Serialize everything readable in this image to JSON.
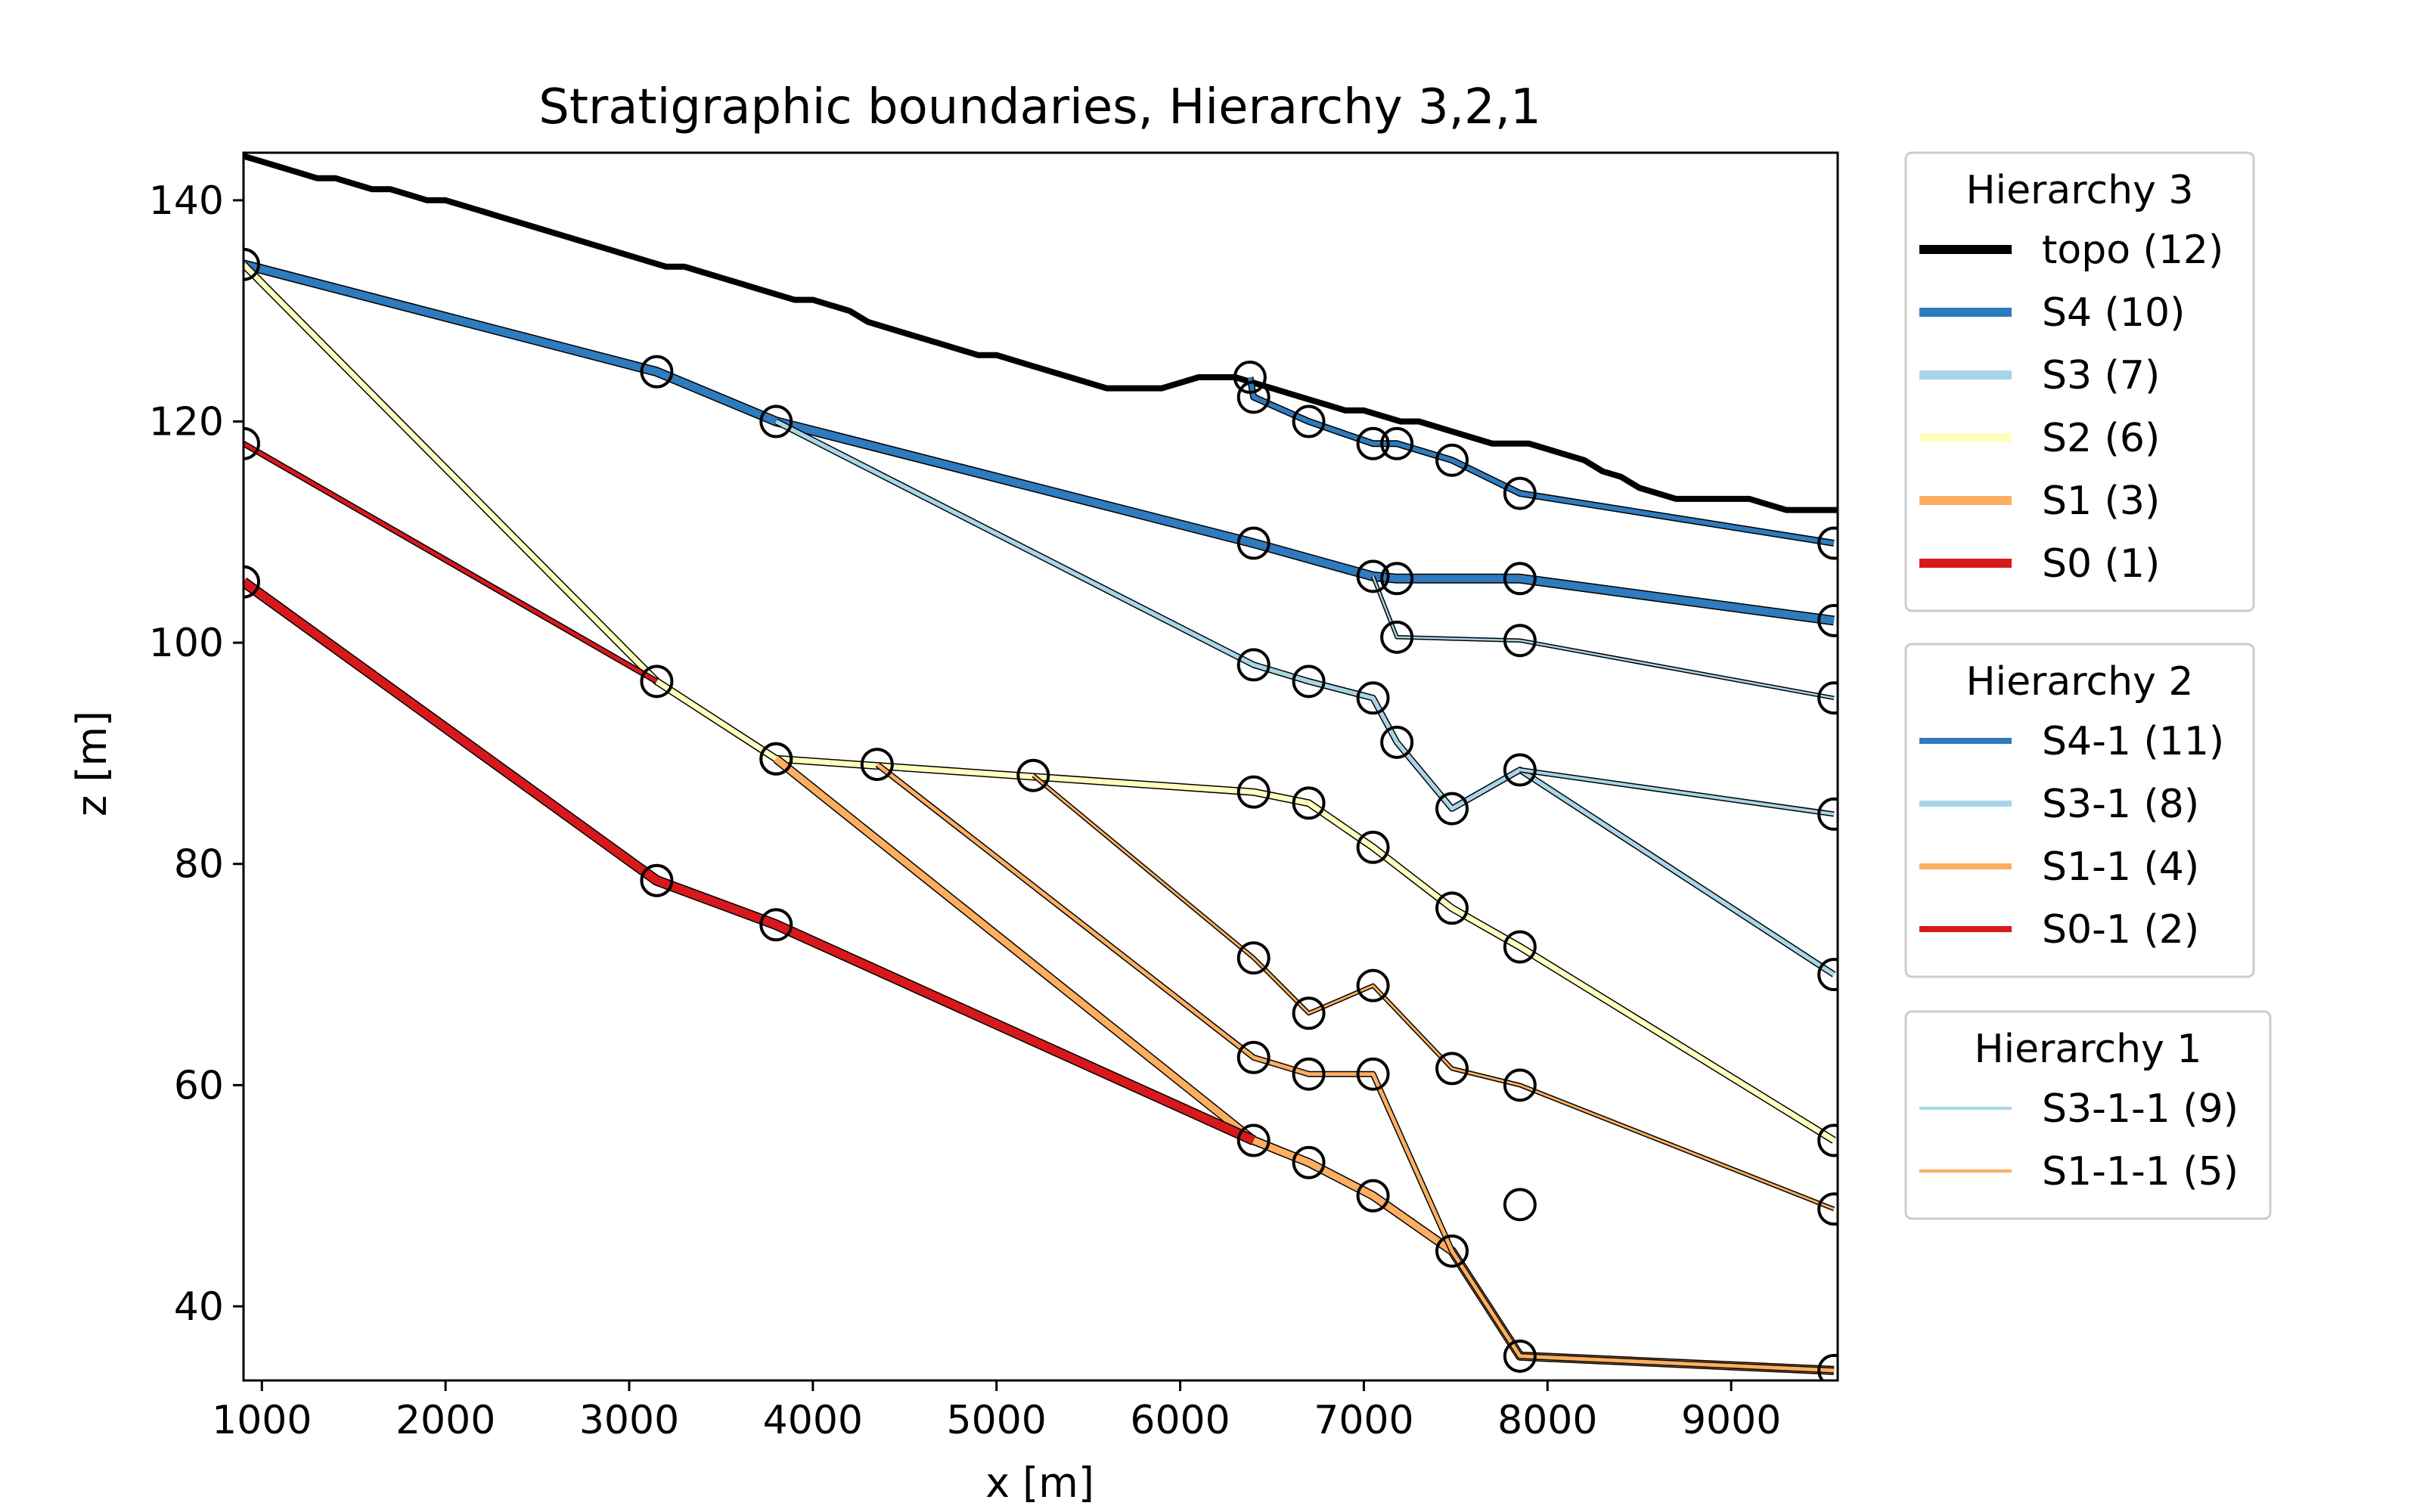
{
  "chart_data": {
    "type": "line",
    "title": "Stratigraphic boundaries, Hierarchy 3,2,1",
    "xlabel": "x [m]",
    "ylabel": "z [m]",
    "xlim": [
      900,
      9580
    ],
    "ylim": [
      33.3,
      144.3
    ],
    "xticks": [
      1000,
      2000,
      3000,
      4000,
      5000,
      6000,
      7000,
      8000,
      9000
    ],
    "yticks": [
      40,
      60,
      80,
      100,
      120,
      140
    ],
    "grid": false,
    "legends": [
      {
        "title": "Hierarchy 3",
        "entries": [
          {
            "label": "topo (12)",
            "color": "#000000",
            "style": "thick"
          },
          {
            "label": "S4 (10)",
            "color": "#2e7bbd",
            "style": "thick"
          },
          {
            "label": "S3 (7)",
            "color": "#a8d5e8",
            "style": "thick"
          },
          {
            "label": "S2 (6)",
            "color": "#ffffbf",
            "style": "thick"
          },
          {
            "label": "S1 (3)",
            "color": "#fdae61",
            "style": "thick"
          },
          {
            "label": "S0 (1)",
            "color": "#d7191c",
            "style": "thick"
          }
        ]
      },
      {
        "title": "Hierarchy 2",
        "entries": [
          {
            "label": "S4-1 (11)",
            "color": "#2e7bbd",
            "style": "medium"
          },
          {
            "label": "S3-1 (8)",
            "color": "#a8d5e8",
            "style": "medium"
          },
          {
            "label": "S1-1 (4)",
            "color": "#fdae61",
            "style": "medium"
          },
          {
            "label": "S0-1 (2)",
            "color": "#d7191c",
            "style": "medium"
          }
        ]
      },
      {
        "title": "Hierarchy 1",
        "entries": [
          {
            "label": "S3-1-1 (9)",
            "color": "#a8d5e8",
            "style": "thin"
          },
          {
            "label": "S1-1-1 (5)",
            "color": "#fdae61",
            "style": "thin"
          }
        ]
      }
    ],
    "series": [
      {
        "name": "topo (12)",
        "color": "#000000",
        "x": [
          900,
          1000,
          1100,
          1200,
          1300,
          1400,
          1500,
          1600,
          1700,
          1800,
          1900,
          2000,
          2100,
          2200,
          2300,
          2400,
          2500,
          2600,
          2700,
          2800,
          2900,
          3000,
          3100,
          3200,
          3300,
          3400,
          3500,
          3600,
          3700,
          3800,
          3900,
          4000,
          4100,
          4200,
          4300,
          4400,
          4500,
          4600,
          4700,
          4800,
          4900,
          5000,
          5100,
          5200,
          5300,
          5400,
          5500,
          5600,
          5700,
          5800,
          5900,
          6000,
          6100,
          6200,
          6300,
          6400,
          6500,
          6600,
          6700,
          6800,
          6900,
          7000,
          7100,
          7200,
          7300,
          7400,
          7500,
          7600,
          7700,
          7800,
          7900,
          8000,
          8100,
          8200,
          8300,
          8400,
          8500,
          8600,
          8700,
          8800,
          8900,
          9000,
          9100,
          9200,
          9300,
          9400,
          9500,
          9580
        ],
        "y": [
          144,
          143.5,
          143,
          142.5,
          142,
          142,
          141.5,
          141,
          141,
          140.5,
          140,
          140,
          139.5,
          139,
          138.5,
          138,
          137.5,
          137,
          136.5,
          136,
          135.5,
          135,
          134.5,
          134,
          134,
          133.5,
          133,
          132.5,
          132,
          131.5,
          131,
          131,
          130.5,
          130,
          129,
          128.5,
          128,
          127.5,
          127,
          126.5,
          126,
          126,
          125.5,
          125,
          124.5,
          124,
          123.5,
          123,
          123,
          123,
          123,
          123.5,
          124,
          124,
          124,
          123.5,
          123,
          122.5,
          122,
          121.5,
          121,
          121,
          120.5,
          120,
          120,
          119.5,
          119,
          118.5,
          118,
          118,
          118,
          117.5,
          117,
          116.5,
          115.5,
          115,
          114,
          113.5,
          113,
          113,
          113,
          113,
          113,
          112.5,
          112,
          112,
          112,
          112
        ],
        "lw": 8,
        "edge": false,
        "markers": []
      },
      {
        "name": "S4 (10)",
        "color": "#2e7bbd",
        "x": [
          900,
          3150,
          3800,
          6400,
          7050,
          7180,
          7850,
          9560
        ],
        "y": [
          134.2,
          124.5,
          120,
          109,
          106,
          105.8,
          105.8,
          102
        ],
        "lw": 10,
        "edge": true,
        "markers": [
          [
            900,
            134.2
          ],
          [
            3150,
            124.5
          ],
          [
            3800,
            120
          ],
          [
            6400,
            109
          ],
          [
            7050,
            106
          ],
          [
            7180,
            105.8
          ],
          [
            7850,
            105.8
          ],
          [
            9560,
            102
          ]
        ]
      },
      {
        "name": "S4-1 (11)",
        "color": "#2e7bbd",
        "x": [
          6380,
          6400,
          6700,
          7050,
          7180,
          7480,
          7850,
          9560
        ],
        "y": [
          124,
          122.2,
          120,
          118,
          118,
          116.5,
          113.5,
          109
        ],
        "lw": 6,
        "edge": true,
        "markers": [
          [
            6380,
            124
          ],
          [
            6400,
            122.2
          ],
          [
            6700,
            120
          ],
          [
            7050,
            118
          ],
          [
            7180,
            118
          ],
          [
            7480,
            116.5
          ],
          [
            7850,
            113.5
          ],
          [
            9560,
            109
          ]
        ]
      },
      {
        "name": "S3 (7)",
        "color": "#a8d5e8",
        "x": [
          3800,
          6400,
          6700,
          7050,
          7180,
          7480,
          7850,
          9560
        ],
        "y": [
          120,
          98,
          96.5,
          95,
          91,
          85,
          88.5,
          70
        ],
        "lw": 5.5,
        "edge": true,
        "markers": [
          [
            6400,
            98
          ],
          [
            6700,
            96.5
          ],
          [
            7050,
            95
          ],
          [
            7180,
            91
          ],
          [
            7480,
            85
          ],
          [
            7850,
            88.5
          ],
          [
            9560,
            70
          ]
        ]
      },
      {
        "name": "S3-1 (8)",
        "color": "#a8d5e8",
        "x": [
          7850,
          9560
        ],
        "y": [
          88.5,
          84.5
        ],
        "lw": 4,
        "edge": true,
        "markers": [
          [
            9560,
            84.5
          ]
        ]
      },
      {
        "name": "S3-1-1 (9)",
        "color": "#a8d5e8",
        "x": [
          7050,
          7180,
          7850,
          9560
        ],
        "y": [
          106,
          100.5,
          100.2,
          95
        ],
        "lw": 2.5,
        "edge": true,
        "markers": [
          [
            7180,
            100.5
          ],
          [
            7850,
            100.2
          ],
          [
            9560,
            95
          ]
        ]
      },
      {
        "name": "S2 (6)",
        "color": "#ffffbf",
        "x": [
          900,
          3150,
          3800,
          6400,
          6700,
          7050,
          7480,
          7850,
          9560
        ],
        "y": [
          134.2,
          96.5,
          89.5,
          86.5,
          85.5,
          81.5,
          76,
          72.5,
          55
        ],
        "lw": 7,
        "edge": true,
        "markers": [
          [
            3150,
            96.5
          ],
          [
            3800,
            89.5
          ],
          [
            6400,
            86.5
          ],
          [
            6700,
            85.5
          ],
          [
            7050,
            81.5
          ],
          [
            7480,
            76
          ],
          [
            7850,
            72.5
          ],
          [
            9560,
            55
          ]
        ]
      },
      {
        "name": "S1 (3)",
        "color": "#fdae61",
        "x": [
          3800,
          6400,
          6700,
          7050,
          7480,
          7850,
          9560
        ],
        "y": [
          89.5,
          55,
          53,
          50,
          45,
          35.5,
          34.2
        ],
        "lw": 9,
        "edge": true,
        "markers": [
          [
            6400,
            55
          ],
          [
            6700,
            53
          ],
          [
            7050,
            50
          ],
          [
            7480,
            45
          ],
          [
            7850,
            35.5
          ],
          [
            9560,
            34.2
          ]
        ]
      },
      {
        "name": "S1-1 (4)",
        "color": "#fdae61",
        "x": [
          4350,
          6400,
          6700,
          7050,
          7480,
          7850,
          9560
        ],
        "y": [
          89,
          62.5,
          61,
          61,
          45,
          35.5,
          34.2
        ],
        "lw": 5,
        "edge": true,
        "markers": [
          [
            4350,
            89
          ],
          [
            6400,
            62.5
          ],
          [
            6700,
            61
          ],
          [
            7050,
            61
          ]
        ]
      },
      {
        "name": "S1-1-1 (5)",
        "color": "#fdae61",
        "x": [
          5200,
          6400,
          6700,
          7050,
          7480,
          7850,
          9560
        ],
        "y": [
          88,
          71.5,
          66.5,
          69,
          61.5,
          60,
          48.8
        ],
        "lw": 3,
        "edge": true,
        "markers": [
          [
            5200,
            88
          ],
          [
            6400,
            71.5
          ],
          [
            6700,
            66.5
          ],
          [
            7050,
            69
          ],
          [
            7480,
            61.5
          ],
          [
            7850,
            60
          ],
          [
            9560,
            48.8
          ]
        ]
      },
      {
        "name": "S0 (1)",
        "color": "#d7191c",
        "x": [
          900,
          3150,
          3800,
          6400
        ],
        "y": [
          105.5,
          78.5,
          74.5,
          55
        ],
        "lw": 11,
        "edge": true,
        "markers": [
          [
            900,
            105.5
          ],
          [
            3150,
            78.5
          ],
          [
            3800,
            74.5
          ]
        ]
      },
      {
        "name": "S0-1 (2)",
        "color": "#d7191c",
        "x": [
          900,
          3150
        ],
        "y": [
          118,
          96.5
        ],
        "lw": 5,
        "edge": true,
        "markers": [
          [
            900,
            118
          ]
        ]
      }
    ],
    "extra_markers": [
      [
        7850,
        49.2
      ],
      [
        3800,
        89.5
      ]
    ]
  }
}
